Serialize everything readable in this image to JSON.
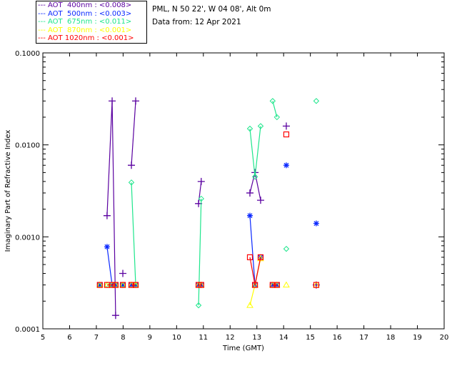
{
  "header": {
    "location": "PML, N 50 22', W 04 08', Alt 0m",
    "date": "Data from: 12 Apr 2021"
  },
  "chart_data": {
    "type": "scatter",
    "title": "",
    "xlabel": "Time (GMT)",
    "ylabel": "Imaginary Part of Refractive Index",
    "xlim": [
      5,
      20
    ],
    "ylim": [
      0.0001,
      0.1
    ],
    "yscale": "log",
    "xticks": [
      "5",
      "6",
      "7",
      "8",
      "9",
      "10",
      "11",
      "12",
      "13",
      "14",
      "15",
      "16",
      "17",
      "18",
      "19",
      "20"
    ],
    "yticks": [
      "0.0001",
      "0.0010",
      "0.0100",
      "0.1000"
    ],
    "legend_placement": "top-left outside",
    "series": [
      {
        "name": "AOT  400nm : <0.008>",
        "color": "#5a00a0",
        "marker": "plus",
        "points": [
          [
            7.4,
            0.0017
          ],
          [
            7.59,
            0.03
          ],
          [
            7.72,
            0.00014
          ],
          null,
          [
            7.99,
            0.0004
          ],
          null,
          [
            8.31,
            0.006
          ],
          [
            8.47,
            0.03
          ],
          null,
          [
            10.82,
            0.0023
          ],
          [
            10.92,
            0.004
          ],
          null,
          [
            12.74,
            0.003
          ],
          [
            12.93,
            0.005
          ],
          [
            13.14,
            0.0025
          ],
          null,
          [
            14.1,
            0.016
          ],
          null,
          [
            15.22,
            0.0003
          ]
        ]
      },
      {
        "name": "AOT  500nm : <0.003>",
        "color": "#0a28ff",
        "marker": "star",
        "points": [
          [
            7.13,
            0.0003
          ],
          null,
          [
            7.4,
            0.00078
          ],
          [
            7.59,
            0.0003
          ],
          [
            7.72,
            0.0003
          ],
          null,
          [
            7.99,
            0.0003
          ],
          null,
          [
            8.31,
            0.0003
          ],
          [
            8.47,
            0.0003
          ],
          null,
          [
            10.82,
            0.0003
          ],
          [
            10.92,
            0.0003
          ],
          null,
          [
            12.74,
            0.0017
          ],
          [
            12.93,
            0.0003
          ],
          [
            13.14,
            0.0006
          ],
          null,
          [
            13.59,
            0.0003
          ],
          [
            13.75,
            0.0003
          ],
          null,
          [
            14.1,
            0.006
          ],
          null,
          [
            15.22,
            0.0014
          ]
        ]
      },
      {
        "name": "AOT  675nm : <0.011>",
        "color": "#1ee68c",
        "marker": "diamond",
        "points": [
          [
            7.13,
            0.0003
          ],
          null,
          [
            7.4,
            0.0003
          ],
          [
            7.59,
            0.0003
          ],
          [
            7.72,
            0.0003
          ],
          null,
          [
            7.99,
            0.0003
          ],
          null,
          [
            8.31,
            0.0039
          ],
          [
            8.47,
            0.0003
          ],
          null,
          [
            10.82,
            0.00018
          ],
          [
            10.92,
            0.0026
          ],
          null,
          [
            12.74,
            0.015
          ],
          [
            12.93,
            0.0045
          ],
          [
            13.14,
            0.016
          ],
          null,
          [
            13.59,
            0.03
          ],
          [
            13.75,
            0.02
          ],
          null,
          [
            14.1,
            0.00074
          ],
          null,
          [
            15.22,
            0.03
          ]
        ]
      },
      {
        "name": "AOT  870nm : <0.001>",
        "color": "#ffff00",
        "marker": "triangle",
        "points": [
          [
            7.13,
            0.0003
          ],
          null,
          [
            7.4,
            0.0003
          ],
          [
            7.59,
            0.0003
          ],
          [
            7.72,
            0.0003
          ],
          null,
          [
            7.99,
            0.0003
          ],
          null,
          [
            8.31,
            0.0003
          ],
          [
            8.47,
            0.0003
          ],
          null,
          [
            10.82,
            0.0003
          ],
          [
            10.92,
            0.0003
          ],
          null,
          [
            12.74,
            0.00018
          ],
          [
            12.93,
            0.0003
          ],
          [
            13.14,
            0.00058
          ],
          null,
          [
            13.59,
            0.0003
          ],
          [
            13.75,
            0.0003
          ],
          null,
          [
            14.1,
            0.0003
          ],
          null,
          [
            15.22,
            0.0003
          ]
        ]
      },
      {
        "name": "AOT 1020nm : <0.001>",
        "color": "#ff0000",
        "marker": "square",
        "points": [
          [
            7.13,
            0.0003
          ],
          null,
          [
            7.4,
            0.0003
          ],
          [
            7.59,
            0.0003
          ],
          [
            7.72,
            0.0003
          ],
          null,
          [
            7.99,
            0.0003
          ],
          null,
          [
            8.31,
            0.0003
          ],
          [
            8.47,
            0.0003
          ],
          null,
          [
            10.82,
            0.0003
          ],
          [
            10.92,
            0.0003
          ],
          null,
          [
            12.74,
            0.0006
          ],
          [
            12.93,
            0.0003
          ],
          [
            13.14,
            0.0006
          ],
          null,
          [
            13.59,
            0.0003
          ],
          [
            13.75,
            0.0003
          ],
          null,
          [
            14.1,
            0.013
          ],
          null,
          [
            15.22,
            0.0003
          ]
        ]
      }
    ]
  }
}
